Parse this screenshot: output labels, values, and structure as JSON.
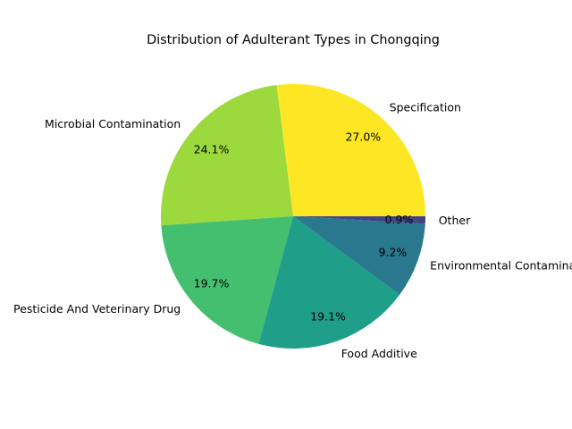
{
  "chart_data": {
    "type": "pie",
    "title": "Distribution of Adulterant Types in Chongqing",
    "categories": [
      "Specification",
      "Microbial Contamination",
      "Pesticide And Veterinary Drug",
      "Food Additive",
      "Environmental Contaminant",
      "Other"
    ],
    "values": [
      27.0,
      24.1,
      19.7,
      19.1,
      9.2,
      0.9
    ],
    "value_labels": [
      "27.0%",
      "24.1%",
      "19.7%",
      "19.1%",
      "9.2%",
      "0.9%"
    ],
    "colors": [
      "#fde725",
      "#9bd93c",
      "#44bf70",
      "#1f9e89",
      "#2a788e",
      "#414487"
    ],
    "start_angle_deg": 0,
    "direction": "counterclockwise",
    "legend": "none"
  }
}
